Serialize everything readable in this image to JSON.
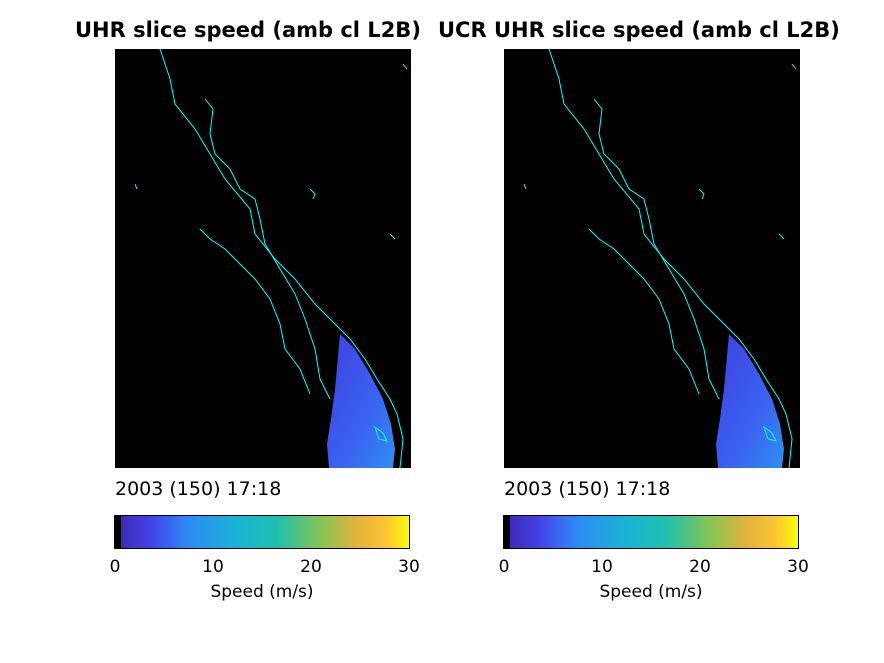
{
  "chart_data": [
    {
      "type": "heatmap",
      "title": "UHR slice speed (amb cl L2B)",
      "timestamp": "2003 (150) 17:18",
      "colorbar": {
        "label": "Speed (m/s)",
        "ticks": [
          "0",
          "10",
          "20",
          "30"
        ],
        "range": [
          0,
          30
        ],
        "colormap": "parula"
      },
      "coastline_color": "#00ffff",
      "background_color": "#000000",
      "swath_speed_range": [
        2,
        10
      ]
    },
    {
      "type": "heatmap",
      "title": "UCR UHR slice speed (amb cl L2B)",
      "timestamp": "2003 (150) 17:18",
      "colorbar": {
        "label": "Speed (m/s)",
        "ticks": [
          "0",
          "10",
          "20",
          "30"
        ],
        "range": [
          0,
          30
        ],
        "colormap": "parula"
      },
      "coastline_color": "#00ffff",
      "background_color": "#000000",
      "swath_speed_range": [
        2,
        10
      ]
    }
  ]
}
